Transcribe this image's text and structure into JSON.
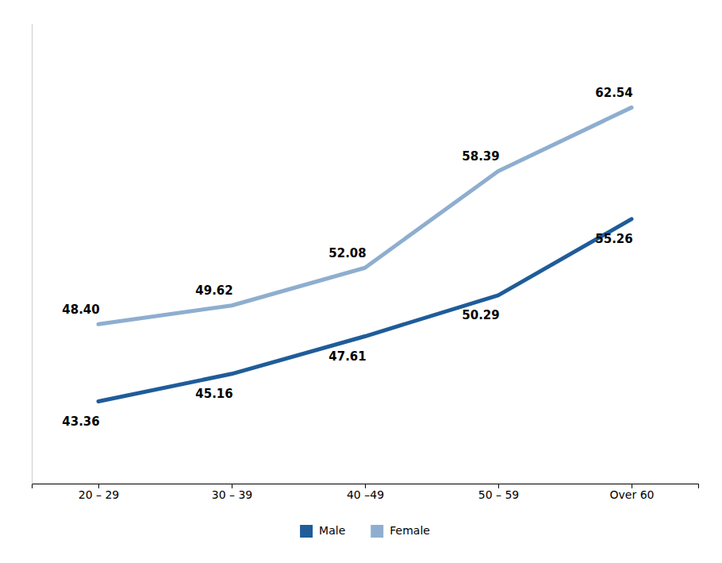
{
  "chart_data": {
    "type": "line",
    "categories": [
      "20 – 29",
      "30 – 39",
      "40 –49",
      "50 – 59",
      "Over 60"
    ],
    "series": [
      {
        "name": "Male",
        "color": "#1f5c99",
        "values": [
          43.36,
          45.16,
          47.61,
          50.29,
          55.26
        ]
      },
      {
        "name": "Female",
        "color": "#8eaecf",
        "values": [
          48.4,
          49.62,
          52.08,
          58.39,
          62.54
        ],
        "value_labels": [
          "48.40",
          "49.62",
          "52.08",
          "58.39",
          "62.54"
        ]
      }
    ],
    "ylim": [
      38,
      68
    ],
    "data_labels": true,
    "tick_labels": "x",
    "legend": "bottom"
  }
}
